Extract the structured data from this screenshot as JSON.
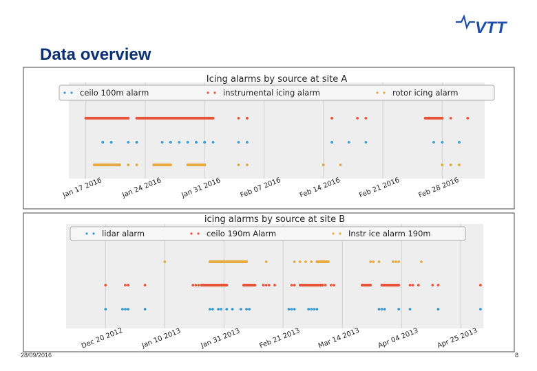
{
  "slide": {
    "title": "Data overview",
    "date": "28/09/2016",
    "page": "8",
    "logo_text": "VTT",
    "colors": {
      "title": "#0b2f73",
      "logo": "#1f4ea8"
    }
  },
  "chart_data": [
    {
      "type": "scatter",
      "title": "Icing alarms by source at site A",
      "xlabel": "",
      "ylabel": "",
      "x_ticks": [
        "Jan 17 2016",
        "Jan 24 2016",
        "Jan 31 2016",
        "Feb 07 2016",
        "Feb 14 2016",
        "Feb 21 2016",
        "Feb 28 2016"
      ],
      "xlim": [
        "2016-01-15",
        "2016-03-04"
      ],
      "legend_position": "top",
      "grid": true,
      "series": [
        {
          "name": "ceilo 100m alarm",
          "color": "#3b9bd1",
          "lane": 1,
          "points": [
            "2016-01-19",
            "2016-01-19",
            "2016-01-20",
            "2016-01-20",
            "2016-01-22",
            "2016-01-23",
            "2016-01-23",
            "2016-01-26",
            "2016-01-27",
            "2016-01-27",
            "2016-01-28",
            "2016-01-29",
            "2016-01-30",
            "2016-01-30",
            "2016-01-31",
            "2016-01-31",
            "2016-02-01",
            "2016-02-04",
            "2016-02-05",
            "2016-02-15",
            "2016-02-15",
            "2016-02-17",
            "2016-02-19",
            "2016-02-27",
            "2016-02-28",
            "2016-03-01",
            "2016-03-01"
          ]
        },
        {
          "name": "instrumental icing alarm",
          "color": "#e8533a",
          "lane": 0,
          "segments": [
            [
              "2016-01-17",
              "2016-01-22"
            ],
            [
              "2016-01-23",
              "2016-02-01"
            ],
            [
              "2016-02-26",
              "2016-02-28"
            ]
          ],
          "points": [
            "2016-02-04",
            "2016-02-05",
            "2016-02-05",
            "2016-02-15",
            "2016-02-15",
            "2016-02-18",
            "2016-02-19",
            "2016-02-29",
            "2016-03-02"
          ]
        },
        {
          "name": "rotor icing alarm",
          "color": "#e8a93e",
          "lane": 2,
          "segments": [
            [
              "2016-01-18",
              "2016-01-21"
            ],
            [
              "2016-01-25",
              "2016-01-27"
            ],
            [
              "2016-01-29",
              "2016-01-31"
            ]
          ],
          "points": [
            "2016-01-22",
            "2016-01-23",
            "2016-02-04",
            "2016-02-05",
            "2016-02-14",
            "2016-02-16",
            "2016-02-28",
            "2016-02-28",
            "2016-02-29",
            "2016-03-01"
          ]
        }
      ]
    },
    {
      "type": "scatter",
      "title": "icing alarms by source at site B",
      "xlabel": "",
      "ylabel": "",
      "x_ticks": [
        "Dec 20 2012",
        "Jan 10 2013",
        "Jan 31 2013",
        "Feb 21 2013",
        "Mar 14 2013",
        "Apr 04 2013",
        "Apr 25 2013"
      ],
      "xlim": [
        "2012-12-06",
        "2013-05-03"
      ],
      "legend_position": "top",
      "grid": true,
      "series": [
        {
          "name": "lidar alarm",
          "color": "#3b9bd1",
          "lane": 2,
          "points": [
            "2012-12-20",
            "2012-12-26",
            "2012-12-27",
            "2012-12-28",
            "2013-01-03",
            "2013-01-26",
            "2013-01-27",
            "2013-01-29",
            "2013-01-30",
            "2013-02-01",
            "2013-02-03",
            "2013-02-06",
            "2013-02-08",
            "2013-02-09",
            "2013-02-23",
            "2013-02-24",
            "2013-02-25",
            "2013-03-02",
            "2013-03-03",
            "2013-03-04",
            "2013-03-05",
            "2013-03-27",
            "2013-03-28",
            "2013-03-29",
            "2013-04-03",
            "2013-04-07",
            "2013-04-17",
            "2013-05-02"
          ]
        },
        {
          "name": "ceilo 190m Alarm",
          "color": "#e8533a",
          "lane": 1,
          "segments": [
            [
              "2013-01-23",
              "2013-02-01"
            ],
            [
              "2013-02-07",
              "2013-02-11"
            ],
            [
              "2013-02-27",
              "2013-03-07"
            ],
            [
              "2013-03-21",
              "2013-03-24"
            ],
            [
              "2013-03-28",
              "2013-04-03"
            ]
          ],
          "points": [
            "2012-12-20",
            "2012-12-27",
            "2012-12-28",
            "2013-01-03",
            "2013-01-20",
            "2013-01-21",
            "2013-01-22",
            "2013-02-14",
            "2013-02-15",
            "2013-02-16",
            "2013-02-18",
            "2013-02-24",
            "2013-02-25",
            "2013-03-08",
            "2013-03-10",
            "2013-03-11",
            "2013-04-07",
            "2013-04-08",
            "2013-04-10",
            "2013-04-15",
            "2013-04-17",
            "2013-05-02"
          ]
        },
        {
          "name": "Instr ice alarm 190m",
          "color": "#e8a93e",
          "lane": 0,
          "segments": [
            [
              "2013-01-26",
              "2013-02-08"
            ],
            [
              "2013-03-05",
              "2013-03-09"
            ]
          ],
          "points": [
            "2013-01-10",
            "2013-02-15",
            "2013-02-25",
            "2013-02-27",
            "2013-03-01",
            "2013-03-03",
            "2013-03-24",
            "2013-03-25",
            "2013-03-27",
            "2013-04-01",
            "2013-04-02",
            "2013-04-03",
            "2013-04-11"
          ]
        }
      ]
    }
  ]
}
